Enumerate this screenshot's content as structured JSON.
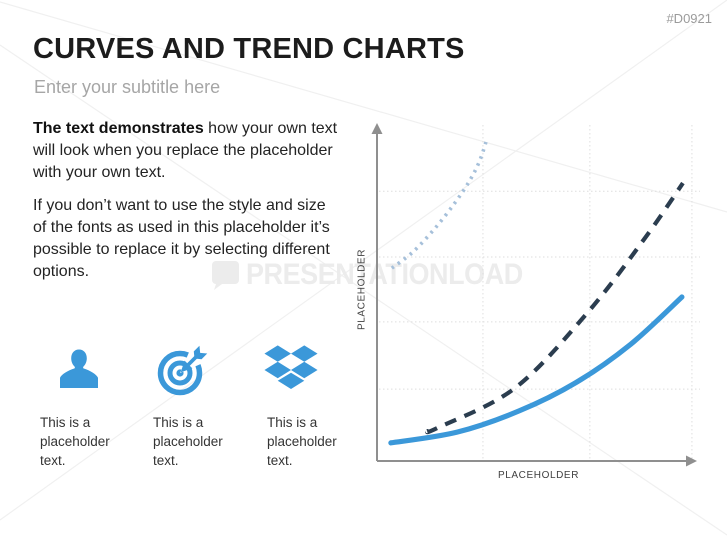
{
  "slide": {
    "tag": "#D0921",
    "title": "CURVES AND TREND CHARTS",
    "subtitle": "Enter your subtitle here",
    "body": {
      "p1_bold": "The text demonstrates",
      "p1_rest": " how your own text will look when you replace the placeholder with your own text.",
      "p2": "If you don’t want to use the style and size of the fonts as used in this placeholder it’s possible to replace it by selecting different options."
    },
    "features": [
      {
        "icon": "person-icon",
        "caption": "This is a placeholder text."
      },
      {
        "icon": "target-icon",
        "caption": "This is a placeholder text."
      },
      {
        "icon": "dropbox-icon",
        "caption": "This is a placeholder text."
      }
    ],
    "watermark": {
      "text": "PRESENTATIONLOAD"
    }
  },
  "colors": {
    "accent_blue": "#3b98d9",
    "dark_navy": "#2b3d4f",
    "light_steel": "#a6c0da",
    "axis_gray": "#8f8f8f",
    "grid_gray": "#dedede",
    "watermark_gray": "#ececec"
  },
  "chart_data": {
    "type": "line",
    "title": "",
    "xlabel": "PLACEHOLDER",
    "ylabel": "PLACEHOLDER",
    "axes_numeric_labels": "none shown (placeholder axes, normalized 0-1 coordinates)",
    "xlim": [
      0,
      1
    ],
    "ylim": [
      0,
      1
    ],
    "grid": true,
    "legend": "none",
    "gridlines": {
      "x": [
        0.328,
        0.659,
        0.975
      ],
      "y": [
        0.214,
        0.414,
        0.607,
        0.803
      ]
    },
    "series": [
      {
        "name": "solid-blue-trend",
        "style": "solid",
        "color": "#3b98d9",
        "width": 5.2,
        "points": [
          [
            0.043,
            0.054
          ],
          [
            0.248,
            0.086
          ],
          [
            0.44,
            0.149
          ],
          [
            0.619,
            0.235
          ],
          [
            0.786,
            0.348
          ],
          [
            0.944,
            0.488
          ]
        ]
      },
      {
        "name": "dashed-navy-trend",
        "style": "dashed",
        "color": "#2b3d4f",
        "width": 4.2,
        "points": [
          [
            0.155,
            0.089
          ],
          [
            0.186,
            0.098
          ],
          [
            0.427,
            0.217
          ],
          [
            0.653,
            0.443
          ],
          [
            0.83,
            0.664
          ],
          [
            0.947,
            0.827
          ]
        ]
      },
      {
        "name": "dotted-steel-trend",
        "style": "dotted",
        "color": "#a6c0da",
        "width": 3.6,
        "points": [
          [
            0.046,
            0.574
          ],
          [
            0.111,
            0.622
          ],
          [
            0.18,
            0.693
          ],
          [
            0.241,
            0.768
          ],
          [
            0.288,
            0.836
          ],
          [
            0.319,
            0.896
          ],
          [
            0.341,
            0.961
          ]
        ]
      }
    ]
  }
}
